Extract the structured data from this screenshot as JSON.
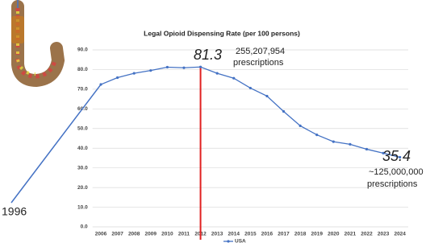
{
  "chart_data": {
    "type": "line",
    "title": "Legal Opioid Dispensing Rate (per 100 persons)",
    "categories": [
      "2006",
      "2007",
      "2008",
      "2009",
      "2010",
      "2011",
      "2012",
      "2013",
      "2014",
      "2015",
      "2016",
      "2017",
      "2018",
      "2019",
      "2020",
      "2021",
      "2022",
      "2023",
      "2024"
    ],
    "series": [
      {
        "name": "USA",
        "color": "#4472c4",
        "values": [
          72.4,
          75.9,
          78.1,
          79.5,
          81.2,
          80.9,
          81.3,
          78.1,
          75.6,
          70.6,
          66.5,
          58.7,
          51.4,
          46.8,
          43.3,
          42.0,
          39.5,
          37.5,
          35.4
        ],
        "value_labels": [
          null,
          null,
          null,
          null,
          null,
          null,
          "81.3",
          null,
          null,
          null,
          null,
          null,
          null,
          null,
          null,
          null,
          null,
          null,
          "35.4"
        ]
      }
    ],
    "ylim": [
      0,
      90
    ],
    "yticks": [
      {
        "value": 0,
        "label": "0.0"
      },
      {
        "value": 10,
        "label": "10.0"
      },
      {
        "value": 20,
        "label": "20.0"
      },
      {
        "value": 30,
        "label": "30.0"
      },
      {
        "value": 40,
        "label": "40.0"
      },
      {
        "value": 50,
        "label": "50.0"
      },
      {
        "value": 60,
        "label": "60.0"
      },
      {
        "value": 70,
        "label": "70.0"
      },
      {
        "value": 80,
        "label": "80.0"
      },
      {
        "value": 90,
        "label": "90.0"
      }
    ],
    "grid": true,
    "highlight_color": "#e02020",
    "annotations": [
      "255,207,954",
      "prescriptions",
      "~125,000,000",
      "prescriptions",
      "1996"
    ]
  }
}
